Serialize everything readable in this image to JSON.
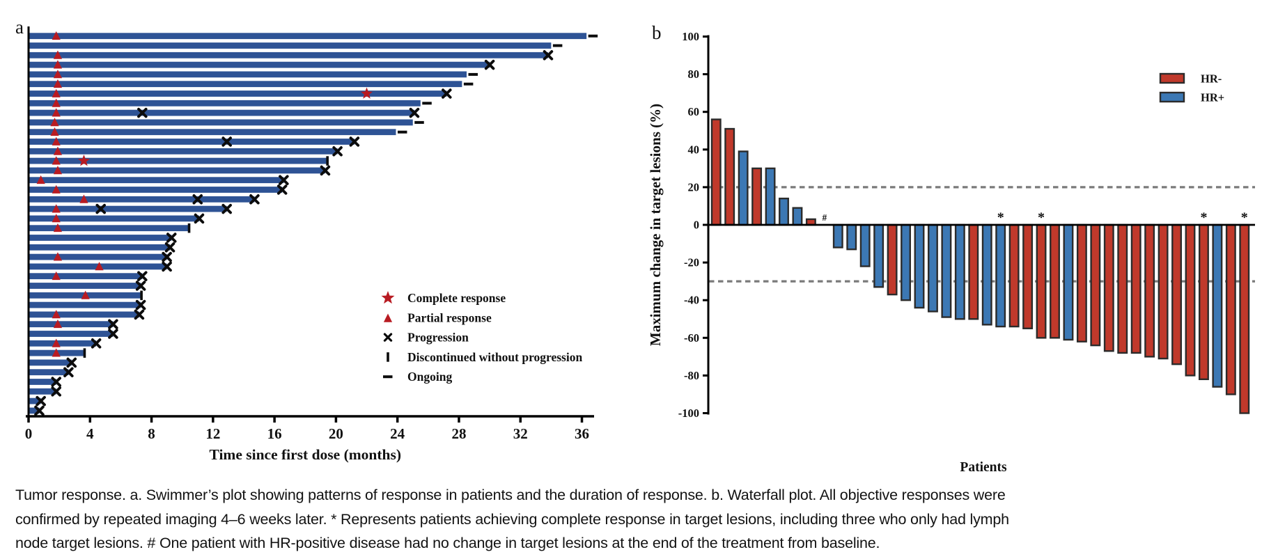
{
  "caption": {
    "lines": [
      "Tumor response. a. Swimmer’s plot showing patterns of response in patients and the duration of response. b. Waterfall plot. All objective responses were",
      "confirmed by repeated imaging 4–6 weeks later. * Represents patients achieving complete response in target lesions, including three who only had lymph",
      "node target lesions. # One patient with HR-positive disease had no change in target lesions at the end of the treatment from baseline."
    ]
  },
  "chart_data": [
    {
      "type": "swimmer",
      "panel_label": "a",
      "xlabel": "Time since first dose (months)",
      "xlim": [
        0,
        37
      ],
      "xticks": [
        0,
        4,
        8,
        12,
        16,
        20,
        24,
        28,
        32,
        36
      ],
      "bar_color": "#2e5395",
      "marker_red": "#b81b22",
      "legend": [
        {
          "marker": "star",
          "label": "Complete response"
        },
        {
          "marker": "triangle",
          "label": "Partial response"
        },
        {
          "marker": "x",
          "label": "Progression"
        },
        {
          "marker": "bar",
          "label": "Discontinued without progression"
        },
        {
          "marker": "dash",
          "label": "Ongoing"
        }
      ],
      "patients": [
        {
          "months": 36.3,
          "end": "ongoing",
          "triangles": [
            1.8
          ]
        },
        {
          "months": 34.0,
          "end": "ongoing"
        },
        {
          "months": 33.8,
          "end": "progression",
          "triangles": [
            1.9
          ]
        },
        {
          "months": 30.0,
          "end": "progression",
          "triangles": [
            1.9
          ]
        },
        {
          "months": 28.5,
          "end": "ongoing",
          "triangles": [
            1.9
          ]
        },
        {
          "months": 28.2,
          "end": "ongoing",
          "triangles": [
            1.9
          ]
        },
        {
          "months": 27.2,
          "end": "progression",
          "triangles": [
            1.8
          ],
          "star": 22.0
        },
        {
          "months": 25.5,
          "end": "ongoing",
          "triangles": [
            1.8
          ]
        },
        {
          "months": 25.1,
          "end": "progression",
          "triangles": [
            1.8
          ],
          "mid_x": [
            7.4
          ]
        },
        {
          "months": 25.0,
          "end": "ongoing",
          "triangles": [
            1.7
          ]
        },
        {
          "months": 23.9,
          "end": "ongoing",
          "triangles": [
            1.7
          ]
        },
        {
          "months": 21.2,
          "end": "progression",
          "triangles": [
            1.8
          ],
          "mid_x": [
            12.9
          ]
        },
        {
          "months": 20.1,
          "end": "progression",
          "triangles": [
            1.9
          ]
        },
        {
          "months": 19.4,
          "end": "discontinued",
          "triangles": [
            1.8
          ],
          "star": 3.6
        },
        {
          "months": 19.3,
          "end": "progression",
          "triangles": [
            1.9
          ]
        },
        {
          "months": 16.6,
          "end": "progression",
          "triangles": [
            0.8
          ]
        },
        {
          "months": 16.5,
          "end": "progression",
          "triangles": [
            1.8
          ]
        },
        {
          "months": 14.7,
          "end": "progression",
          "triangles": [
            3.6
          ],
          "mid_x": [
            11.0
          ]
        },
        {
          "months": 12.9,
          "end": "progression",
          "triangles": [
            1.8
          ],
          "mid_x": [
            4.7
          ]
        },
        {
          "months": 11.1,
          "end": "progression",
          "triangles": [
            1.8
          ]
        },
        {
          "months": 10.4,
          "end": "discontinued",
          "triangles": [
            1.9
          ]
        },
        {
          "months": 9.3,
          "end": "progression"
        },
        {
          "months": 9.2,
          "end": "progression"
        },
        {
          "months": 9.0,
          "end": "progression",
          "triangles": [
            1.9
          ]
        },
        {
          "months": 9.0,
          "end": "progression",
          "triangles": [
            4.6
          ]
        },
        {
          "months": 7.4,
          "end": "progression",
          "triangles": [
            1.8
          ]
        },
        {
          "months": 7.3,
          "end": "progression"
        },
        {
          "months": 7.3,
          "end": "discontinued",
          "triangles": [
            3.7
          ]
        },
        {
          "months": 7.3,
          "end": "progression"
        },
        {
          "months": 7.2,
          "end": "progression",
          "triangles": [
            1.8
          ]
        },
        {
          "months": 5.5,
          "end": "progression",
          "triangles": [
            1.9
          ]
        },
        {
          "months": 5.5,
          "end": "progression"
        },
        {
          "months": 4.4,
          "end": "progression",
          "triangles": [
            1.8
          ]
        },
        {
          "months": 3.6,
          "end": "discontinued",
          "triangles": [
            1.8
          ]
        },
        {
          "months": 2.8,
          "end": "progression"
        },
        {
          "months": 2.6,
          "end": "progression"
        },
        {
          "months": 1.8,
          "end": "progression"
        },
        {
          "months": 1.8,
          "end": "progression"
        },
        {
          "months": 0.8,
          "end": "progression"
        },
        {
          "months": 0.7,
          "end": "progression"
        }
      ]
    },
    {
      "type": "waterfall",
      "panel_label": "b",
      "ylabel": "Maximum change in target lesions (%)",
      "xlabel": "Patients",
      "ylim": [
        -100,
        100
      ],
      "yticks": [
        100,
        80,
        60,
        40,
        20,
        0,
        -20,
        -40,
        -60,
        -80,
        -100
      ],
      "reference_lines": [
        20,
        -30
      ],
      "legend": [
        {
          "label": "HR-",
          "color": "#c0392b"
        },
        {
          "label": "HR+",
          "color": "#3c78b4"
        }
      ],
      "bars": [
        {
          "value": 56,
          "group": "HR-"
        },
        {
          "value": 51,
          "group": "HR-"
        },
        {
          "value": 39,
          "group": "HR+"
        },
        {
          "value": 30,
          "group": "HR-"
        },
        {
          "value": 30,
          "group": "HR+"
        },
        {
          "value": 14,
          "group": "HR+"
        },
        {
          "value": 9,
          "group": "HR+"
        },
        {
          "value": 3,
          "group": "HR-"
        },
        {
          "value": 0,
          "group": "HR+",
          "note": "#"
        },
        {
          "value": -12,
          "group": "HR+"
        },
        {
          "value": -13,
          "group": "HR+"
        },
        {
          "value": -22,
          "group": "HR+"
        },
        {
          "value": -33,
          "group": "HR+"
        },
        {
          "value": -37,
          "group": "HR-"
        },
        {
          "value": -40,
          "group": "HR+"
        },
        {
          "value": -44,
          "group": "HR+"
        },
        {
          "value": -46,
          "group": "HR+"
        },
        {
          "value": -49,
          "group": "HR+"
        },
        {
          "value": -50,
          "group": "HR+"
        },
        {
          "value": -50,
          "group": "HR-"
        },
        {
          "value": -53,
          "group": "HR+"
        },
        {
          "value": -54,
          "group": "HR+",
          "note": "*"
        },
        {
          "value": -54,
          "group": "HR-"
        },
        {
          "value": -55,
          "group": "HR-"
        },
        {
          "value": -60,
          "group": "HR-",
          "note": "*"
        },
        {
          "value": -60,
          "group": "HR-"
        },
        {
          "value": -61,
          "group": "HR+"
        },
        {
          "value": -62,
          "group": "HR-"
        },
        {
          "value": -64,
          "group": "HR-"
        },
        {
          "value": -67,
          "group": "HR-"
        },
        {
          "value": -68,
          "group": "HR-"
        },
        {
          "value": -68,
          "group": "HR-"
        },
        {
          "value": -70,
          "group": "HR-"
        },
        {
          "value": -71,
          "group": "HR-"
        },
        {
          "value": -74,
          "group": "HR-"
        },
        {
          "value": -80,
          "group": "HR-"
        },
        {
          "value": -82,
          "group": "HR-",
          "note": "*"
        },
        {
          "value": -86,
          "group": "HR+"
        },
        {
          "value": -90,
          "group": "HR-"
        },
        {
          "value": -100,
          "group": "HR-",
          "note": "*"
        }
      ]
    }
  ]
}
